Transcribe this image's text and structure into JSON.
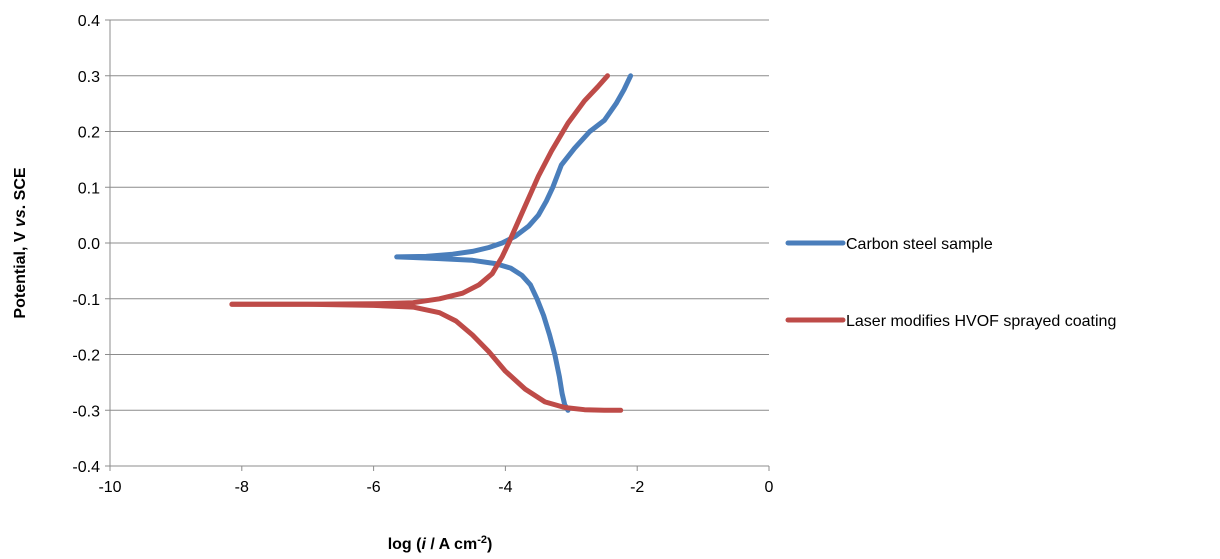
{
  "chart_data": {
    "type": "line",
    "xlabel": {
      "prefix": "log (",
      "italic": "i",
      "middle": " / A cm",
      "sup": "-2",
      "suffix": ")"
    },
    "ylabel": {
      "prefix": "Potential, V ",
      "italic": "vs",
      "suffix": ". SCE"
    },
    "xlim": [
      -10,
      0
    ],
    "ylim": [
      -0.4,
      0.4
    ],
    "x_ticks": [
      -10,
      -8,
      -6,
      -4,
      -2,
      0
    ],
    "x_tick_labels": [
      "-10",
      "-8",
      "-6",
      "-4",
      "-2",
      "0"
    ],
    "y_ticks": [
      -0.4,
      -0.3,
      -0.2,
      -0.1,
      0.0,
      0.1,
      0.2,
      0.3,
      0.4
    ],
    "y_tick_labels": [
      "-0.4",
      "-0.3",
      "-0.2",
      "-0.1",
      "0.0",
      "0.1",
      "0.2",
      "0.3",
      "0.4"
    ],
    "grid": "horizontal",
    "legend_position": "right",
    "series": [
      {
        "name": "Carbon steel sample",
        "color": "#4a7ebb",
        "points": [
          [
            -3.05,
            -0.3
          ],
          [
            -3.1,
            -0.29
          ],
          [
            -3.14,
            -0.27
          ],
          [
            -3.18,
            -0.24
          ],
          [
            -3.25,
            -0.2
          ],
          [
            -3.33,
            -0.165
          ],
          [
            -3.42,
            -0.13
          ],
          [
            -3.52,
            -0.1
          ],
          [
            -3.62,
            -0.075
          ],
          [
            -3.75,
            -0.058
          ],
          [
            -3.92,
            -0.045
          ],
          [
            -4.15,
            -0.037
          ],
          [
            -4.5,
            -0.031
          ],
          [
            -5.0,
            -0.028
          ],
          [
            -5.4,
            -0.026
          ],
          [
            -5.65,
            -0.025
          ],
          [
            -5.2,
            -0.024
          ],
          [
            -4.8,
            -0.02
          ],
          [
            -4.5,
            -0.015
          ],
          [
            -4.25,
            -0.008
          ],
          [
            -4.05,
            0.0
          ],
          [
            -3.85,
            0.012
          ],
          [
            -3.65,
            0.03
          ],
          [
            -3.5,
            0.05
          ],
          [
            -3.38,
            0.075
          ],
          [
            -3.28,
            0.1
          ],
          [
            -3.15,
            0.14
          ],
          [
            -2.95,
            0.17
          ],
          [
            -2.72,
            0.2
          ],
          [
            -2.5,
            0.22
          ],
          [
            -2.32,
            0.25
          ],
          [
            -2.2,
            0.275
          ],
          [
            -2.1,
            0.3
          ]
        ]
      },
      {
        "name": "Laser modifies HVOF sprayed coating",
        "color": "#be4b48",
        "points": [
          [
            -8.15,
            -0.11
          ],
          [
            -7.0,
            -0.11
          ],
          [
            -6.0,
            -0.109
          ],
          [
            -5.4,
            -0.107
          ],
          [
            -5.0,
            -0.1
          ],
          [
            -4.65,
            -0.09
          ],
          [
            -4.4,
            -0.075
          ],
          [
            -4.2,
            -0.055
          ],
          [
            -4.05,
            -0.025
          ],
          [
            -3.95,
            0.0
          ],
          [
            -3.8,
            0.04
          ],
          [
            -3.65,
            0.08
          ],
          [
            -3.5,
            0.12
          ],
          [
            -3.3,
            0.165
          ],
          [
            -3.05,
            0.215
          ],
          [
            -2.8,
            0.255
          ],
          [
            -2.6,
            0.28
          ],
          [
            -2.45,
            0.3
          ],
          [
            -8.15,
            -0.11
          ],
          [
            -7.0,
            -0.11
          ],
          [
            -6.0,
            -0.112
          ],
          [
            -5.4,
            -0.115
          ],
          [
            -5.0,
            -0.125
          ],
          [
            -4.75,
            -0.14
          ],
          [
            -4.5,
            -0.165
          ],
          [
            -4.25,
            -0.195
          ],
          [
            -4.0,
            -0.23
          ],
          [
            -3.7,
            -0.262
          ],
          [
            -3.4,
            -0.285
          ],
          [
            -3.1,
            -0.295
          ],
          [
            -2.8,
            -0.299
          ],
          [
            -2.5,
            -0.3
          ],
          [
            -2.25,
            -0.3
          ]
        ],
        "branch_break": 18
      }
    ]
  }
}
